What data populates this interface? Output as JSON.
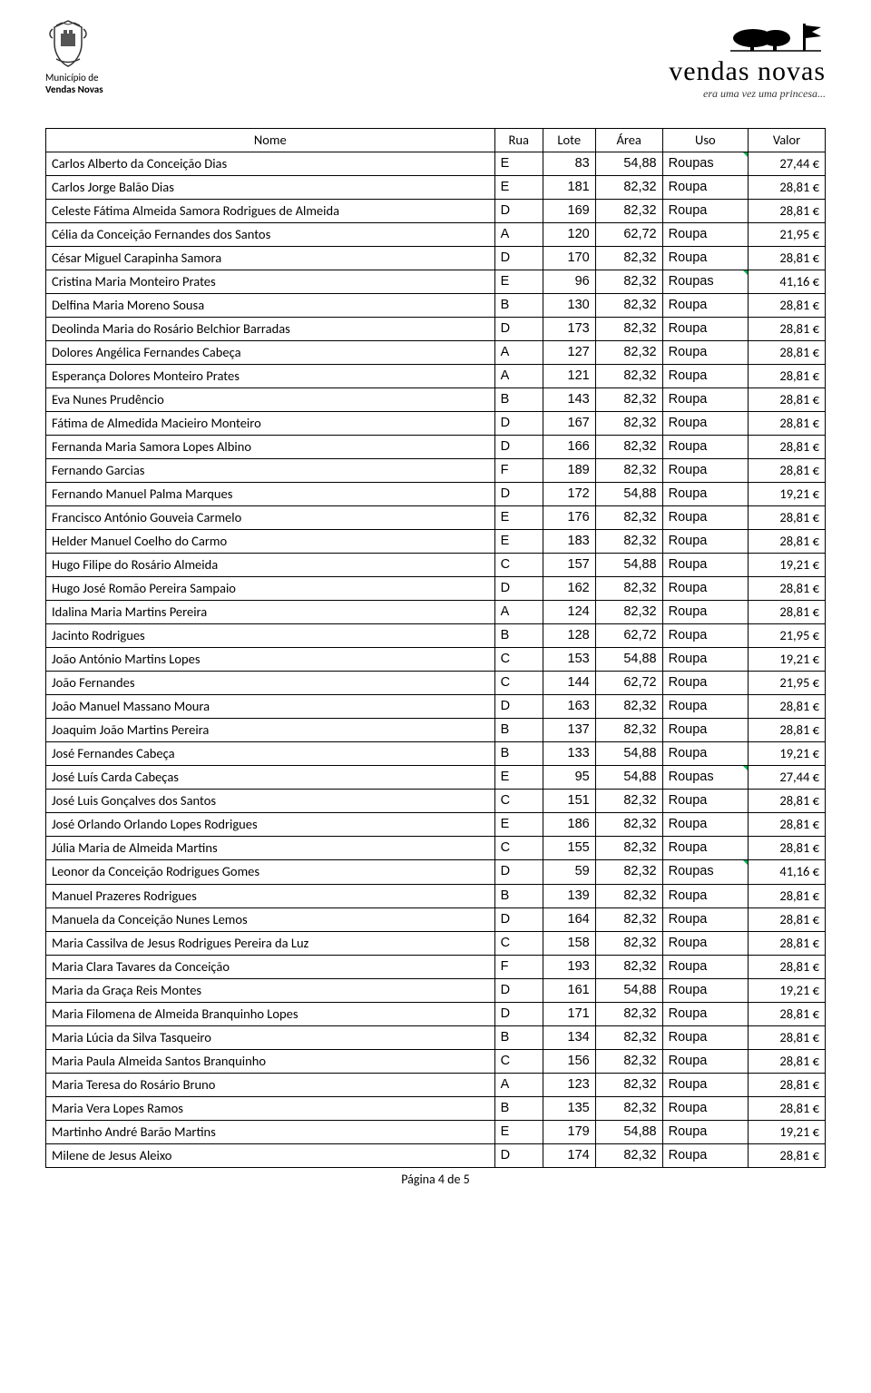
{
  "header": {
    "muni_line1": "Município de",
    "muni_line2": "Vendas Novas",
    "brand_name": "vendas novas",
    "brand_tag": "era uma vez uma princesa..."
  },
  "table": {
    "columns": [
      "Nome",
      "Rua",
      "Lote",
      "Área",
      "Uso",
      "Valor"
    ],
    "rows": [
      {
        "nome": "Carlos Alberto da Conceição Dias",
        "rua": "E",
        "lote": "83",
        "area": "54,88",
        "uso": "Roupas",
        "valor": "27,44 €",
        "tri": true
      },
      {
        "nome": "Carlos Jorge Balão Dias",
        "rua": "E",
        "lote": "181",
        "area": "82,32",
        "uso": "Roupa",
        "valor": "28,81 €",
        "tri": false
      },
      {
        "nome": "Celeste Fátima Almeida Samora Rodrigues de Almeida",
        "rua": "D",
        "lote": "169",
        "area": "82,32",
        "uso": "Roupa",
        "valor": "28,81 €",
        "tri": false
      },
      {
        "nome": "Célia da Conceição Fernandes dos Santos",
        "rua": "A",
        "lote": "120",
        "area": "62,72",
        "uso": "Roupa",
        "valor": "21,95 €",
        "tri": false
      },
      {
        "nome": "César Miguel Carapinha Samora",
        "rua": "D",
        "lote": "170",
        "area": "82,32",
        "uso": "Roupa",
        "valor": "28,81 €",
        "tri": false
      },
      {
        "nome": "Cristina Maria Monteiro Prates",
        "rua": "E",
        "lote": "96",
        "area": "82,32",
        "uso": "Roupas",
        "valor": "41,16 €",
        "tri": true
      },
      {
        "nome": "Delfina Maria Moreno Sousa",
        "rua": "B",
        "lote": "130",
        "area": "82,32",
        "uso": "Roupa",
        "valor": "28,81 €",
        "tri": false
      },
      {
        "nome": "Deolinda Maria do Rosário Belchior Barradas",
        "rua": "D",
        "lote": "173",
        "area": "82,32",
        "uso": "Roupa",
        "valor": "28,81 €",
        "tri": false
      },
      {
        "nome": "Dolores Angélica Fernandes Cabeça",
        "rua": "A",
        "lote": "127",
        "area": "82,32",
        "uso": "Roupa",
        "valor": "28,81 €",
        "tri": false
      },
      {
        "nome": "Esperança Dolores Monteiro Prates",
        "rua": "A",
        "lote": "121",
        "area": "82,32",
        "uso": "Roupa",
        "valor": "28,81 €",
        "tri": false
      },
      {
        "nome": "Eva Nunes Prudêncio",
        "rua": "B",
        "lote": "143",
        "area": "82,32",
        "uso": "Roupa",
        "valor": "28,81 €",
        "tri": false
      },
      {
        "nome": "Fátima de Almedida Macieiro Monteiro",
        "rua": "D",
        "lote": "167",
        "area": "82,32",
        "uso": "Roupa",
        "valor": "28,81 €",
        "tri": false
      },
      {
        "nome": "Fernanda Maria Samora Lopes Albino",
        "rua": "D",
        "lote": "166",
        "area": "82,32",
        "uso": "Roupa",
        "valor": "28,81 €",
        "tri": false
      },
      {
        "nome": "Fernando Garcias",
        "rua": "F",
        "lote": "189",
        "area": "82,32",
        "uso": "Roupa",
        "valor": "28,81 €",
        "tri": false
      },
      {
        "nome": "Fernando Manuel Palma Marques",
        "rua": "D",
        "lote": "172",
        "area": "54,88",
        "uso": "Roupa",
        "valor": "19,21 €",
        "tri": false
      },
      {
        "nome": "Francisco António Gouveia Carmelo",
        "rua": "E",
        "lote": "176",
        "area": "82,32",
        "uso": "Roupa",
        "valor": "28,81 €",
        "tri": false
      },
      {
        "nome": "Helder Manuel Coelho do Carmo",
        "rua": "E",
        "lote": "183",
        "area": "82,32",
        "uso": "Roupa",
        "valor": "28,81 €",
        "tri": false
      },
      {
        "nome": "Hugo Filipe do Rosário Almeida",
        "rua": "C",
        "lote": "157",
        "area": "54,88",
        "uso": "Roupa",
        "valor": "19,21 €",
        "tri": false
      },
      {
        "nome": "Hugo José Romão Pereira Sampaio",
        "rua": "D",
        "lote": "162",
        "area": "82,32",
        "uso": "Roupa",
        "valor": "28,81 €",
        "tri": false
      },
      {
        "nome": "Idalina Maria Martins Pereira",
        "rua": "A",
        "lote": "124",
        "area": "82,32",
        "uso": "Roupa",
        "valor": "28,81 €",
        "tri": false
      },
      {
        "nome": "Jacinto Rodrigues",
        "rua": "B",
        "lote": "128",
        "area": "62,72",
        "uso": "Roupa",
        "valor": "21,95 €",
        "tri": false
      },
      {
        "nome": "João António Martins Lopes",
        "rua": "C",
        "lote": "153",
        "area": "54,88",
        "uso": "Roupa",
        "valor": "19,21 €",
        "tri": false
      },
      {
        "nome": "João Fernandes",
        "rua": "C",
        "lote": "144",
        "area": "62,72",
        "uso": "Roupa",
        "valor": "21,95 €",
        "tri": false
      },
      {
        "nome": "João Manuel Massano Moura",
        "rua": "D",
        "lote": "163",
        "area": "82,32",
        "uso": "Roupa",
        "valor": "28,81 €",
        "tri": false
      },
      {
        "nome": "Joaquim João Martins Pereira",
        "rua": "B",
        "lote": "137",
        "area": "82,32",
        "uso": "Roupa",
        "valor": "28,81 €",
        "tri": false
      },
      {
        "nome": "José Fernandes Cabeça",
        "rua": "B",
        "lote": "133",
        "area": "54,88",
        "uso": "Roupa",
        "valor": "19,21 €",
        "tri": false
      },
      {
        "nome": "José Luís Carda Cabeças",
        "rua": "E",
        "lote": "95",
        "area": "54,88",
        "uso": "Roupas",
        "valor": "27,44 €",
        "tri": true
      },
      {
        "nome": "José Luis Gonçalves dos Santos",
        "rua": "C",
        "lote": "151",
        "area": "82,32",
        "uso": "Roupa",
        "valor": "28,81 €",
        "tri": false
      },
      {
        "nome": "José Orlando Orlando Lopes Rodrigues",
        "rua": "E",
        "lote": "186",
        "area": "82,32",
        "uso": "Roupa",
        "valor": "28,81 €",
        "tri": false
      },
      {
        "nome": "Júlia Maria de Almeida Martins",
        "rua": "C",
        "lote": "155",
        "area": "82,32",
        "uso": "Roupa",
        "valor": "28,81 €",
        "tri": false
      },
      {
        "nome": "Leonor da Conceição Rodrigues Gomes",
        "rua": "D",
        "lote": "59",
        "area": "82,32",
        "uso": "Roupas",
        "valor": "41,16 €",
        "tri": true
      },
      {
        "nome": "Manuel Prazeres Rodrigues",
        "rua": "B",
        "lote": "139",
        "area": "82,32",
        "uso": "Roupa",
        "valor": "28,81 €",
        "tri": false
      },
      {
        "nome": "Manuela da Conceição Nunes Lemos",
        "rua": "D",
        "lote": "164",
        "area": "82,32",
        "uso": "Roupa",
        "valor": "28,81 €",
        "tri": false
      },
      {
        "nome": "Maria Cassilva de Jesus Rodrigues Pereira da Luz",
        "rua": "C",
        "lote": "158",
        "area": "82,32",
        "uso": "Roupa",
        "valor": "28,81 €",
        "tri": false
      },
      {
        "nome": "Maria Clara Tavares da Conceição",
        "rua": "F",
        "lote": "193",
        "area": "82,32",
        "uso": "Roupa",
        "valor": "28,81 €",
        "tri": false
      },
      {
        "nome": "Maria da Graça Reis Montes",
        "rua": "D",
        "lote": "161",
        "area": "54,88",
        "uso": "Roupa",
        "valor": "19,21 €",
        "tri": false
      },
      {
        "nome": "Maria Filomena de Almeida Branquinho Lopes",
        "rua": "D",
        "lote": "171",
        "area": "82,32",
        "uso": "Roupa",
        "valor": "28,81 €",
        "tri": false
      },
      {
        "nome": "Maria Lúcia da Silva Tasqueiro",
        "rua": "B",
        "lote": "134",
        "area": "82,32",
        "uso": "Roupa",
        "valor": "28,81 €",
        "tri": false
      },
      {
        "nome": "Maria Paula Almeida Santos Branquinho",
        "rua": "C",
        "lote": "156",
        "area": "82,32",
        "uso": "Roupa",
        "valor": "28,81 €",
        "tri": false
      },
      {
        "nome": "Maria Teresa do Rosário Bruno",
        "rua": "A",
        "lote": "123",
        "area": "82,32",
        "uso": "Roupa",
        "valor": "28,81 €",
        "tri": false
      },
      {
        "nome": "Maria Vera Lopes Ramos",
        "rua": "B",
        "lote": "135",
        "area": "82,32",
        "uso": "Roupa",
        "valor": "28,81 €",
        "tri": false
      },
      {
        "nome": "Martinho André Barão Martins",
        "rua": "E",
        "lote": "179",
        "area": "54,88",
        "uso": "Roupa",
        "valor": "19,21 €",
        "tri": false
      },
      {
        "nome": "Milene de Jesus Aleixo",
        "rua": "D",
        "lote": "174",
        "area": "82,32",
        "uso": "Roupa",
        "valor": "28,81 €",
        "tri": false
      }
    ]
  },
  "footer": "Página 4 de 5"
}
